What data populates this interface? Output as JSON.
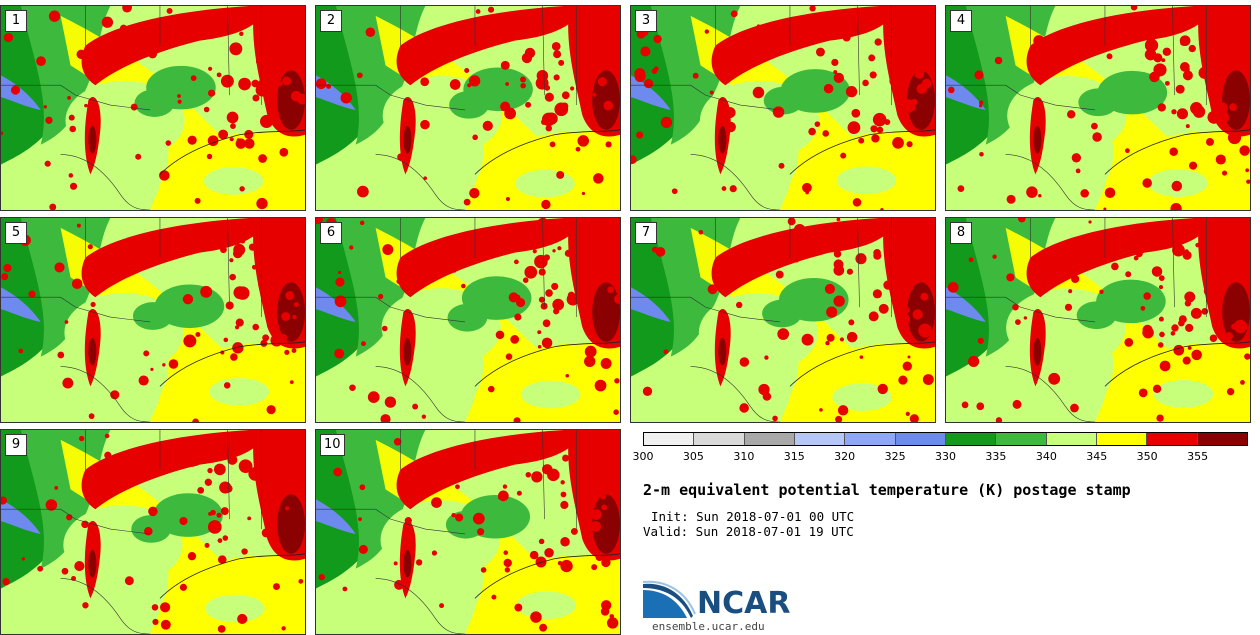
{
  "panels": [
    {
      "label": "1"
    },
    {
      "label": "2"
    },
    {
      "label": "3"
    },
    {
      "label": "4"
    },
    {
      "label": "5"
    },
    {
      "label": "6"
    },
    {
      "label": "7"
    },
    {
      "label": "8"
    },
    {
      "label": "9"
    },
    {
      "label": "10"
    }
  ],
  "colorbar": {
    "ticks": [
      "300",
      "305",
      "310",
      "315",
      "320",
      "325",
      "330",
      "335",
      "340",
      "345",
      "350",
      "355"
    ],
    "colors": [
      "#f0f0f0",
      "#d9d9d9",
      "#a8a8a8",
      "#b5c8f5",
      "#8ea8f5",
      "#6f8aee",
      "#119a1c",
      "#3dba3d",
      "#c8ff7a",
      "#ffff00",
      "#e60000",
      "#8b0000"
    ]
  },
  "title": "2-m equivalent potential temperature (K) postage stamp",
  "init": "Init: Sun 2018-07-01 00 UTC",
  "valid": "Valid: Sun 2018-07-01 19 UTC",
  "logo": {
    "name": "NCAR",
    "website": "ensemble.ucar.edu"
  },
  "colors": {
    "lake": "#6f8aee",
    "dark_green": "#119a1c",
    "green": "#3dba3d",
    "light_green": "#c8ff7a",
    "yellow": "#ffff00",
    "red": "#e60000",
    "dark_red": "#8b0000"
  }
}
